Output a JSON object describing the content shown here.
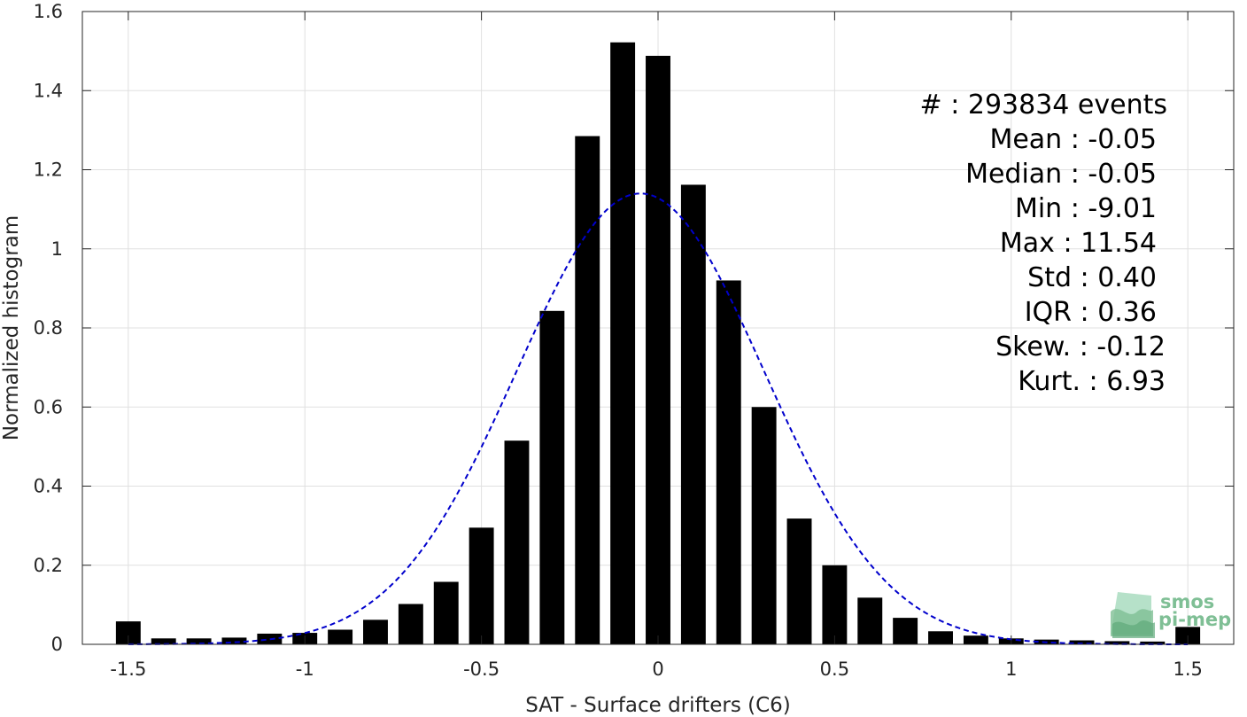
{
  "chart_data": {
    "type": "bar",
    "xlabel": "SAT - Surface drifters (C6)",
    "ylabel": "Normalized histogram",
    "xlim": [
      -1.5,
      1.5
    ],
    "ylim": [
      0,
      1.6
    ],
    "xticks": [
      -1.5,
      -1,
      -0.5,
      0,
      0.5,
      1,
      1.5
    ],
    "xtick_labels": [
      "-1.5",
      "-1",
      "-0.5",
      "0",
      "0.5",
      "1",
      "1.5"
    ],
    "yticks": [
      0,
      0.2,
      0.4,
      0.6,
      0.8,
      1,
      1.2,
      1.4,
      1.6
    ],
    "ytick_labels": [
      "0",
      "0.2",
      "0.4",
      "0.6",
      "0.8",
      "1",
      "1.2",
      "1.4",
      "1.6"
    ],
    "grid": true,
    "bin_width": 0.1,
    "bar_color": "#000000",
    "bins": [
      {
        "x": -1.5,
        "y": 0.058
      },
      {
        "x": -1.4,
        "y": 0.015
      },
      {
        "x": -1.3,
        "y": 0.015
      },
      {
        "x": -1.2,
        "y": 0.017
      },
      {
        "x": -1.1,
        "y": 0.027
      },
      {
        "x": -1.0,
        "y": 0.029
      },
      {
        "x": -0.9,
        "y": 0.037
      },
      {
        "x": -0.8,
        "y": 0.062
      },
      {
        "x": -0.7,
        "y": 0.102
      },
      {
        "x": -0.6,
        "y": 0.158
      },
      {
        "x": -0.5,
        "y": 0.295
      },
      {
        "x": -0.4,
        "y": 0.515
      },
      {
        "x": -0.3,
        "y": 0.843
      },
      {
        "x": -0.2,
        "y": 1.285
      },
      {
        "x": -0.1,
        "y": 1.522
      },
      {
        "x": 0.0,
        "y": 1.488
      },
      {
        "x": 0.1,
        "y": 1.162
      },
      {
        "x": 0.2,
        "y": 0.92
      },
      {
        "x": 0.3,
        "y": 0.6
      },
      {
        "x": 0.4,
        "y": 0.318
      },
      {
        "x": 0.5,
        "y": 0.2
      },
      {
        "x": 0.6,
        "y": 0.118
      },
      {
        "x": 0.7,
        "y": 0.067
      },
      {
        "x": 0.8,
        "y": 0.033
      },
      {
        "x": 0.9,
        "y": 0.022
      },
      {
        "x": 1.0,
        "y": 0.015
      },
      {
        "x": 1.1,
        "y": 0.012
      },
      {
        "x": 1.2,
        "y": 0.01
      },
      {
        "x": 1.3,
        "y": 0.008
      },
      {
        "x": 1.4,
        "y": 0.007
      },
      {
        "x": 1.5,
        "y": 0.044
      }
    ],
    "fit_curve": {
      "style": "dashed",
      "color": "#0000cc",
      "mean": -0.05,
      "std": 0.35,
      "peak": 1.14
    },
    "stats": [
      {
        "label": "#  : 293834 events"
      },
      {
        "label": "Mean : -0.05"
      },
      {
        "label": "Median : -0.05"
      },
      {
        "label": "Min : -9.01"
      },
      {
        "label": "Max : 11.54"
      },
      {
        "label": "Std : 0.40"
      },
      {
        "label": "IQR : 0.36"
      },
      {
        "label": "Skew. : -0.12"
      },
      {
        "label": "Kurt. : 6.93"
      }
    ]
  },
  "logo": {
    "line1": "smos",
    "line2": "pi-mep",
    "color": "#7fbf95"
  }
}
